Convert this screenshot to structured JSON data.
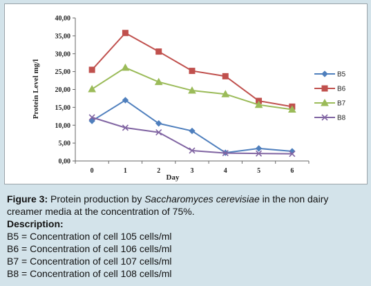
{
  "chart_data": {
    "type": "line",
    "title": "",
    "xlabel": "Day",
    "ylabel": "Protein Level mg/l",
    "categories": [
      "0",
      "1",
      "2",
      "3",
      "4",
      "5",
      "6"
    ],
    "y_ticks": [
      "0,00",
      "5,00",
      "10,00",
      "15,00",
      "20,00",
      "25,00",
      "30,00",
      "35,00",
      "40,00"
    ],
    "ylim": [
      0,
      40
    ],
    "legend_position": "right",
    "series": [
      {
        "name": "B5",
        "color": "#4f7fbd",
        "marker": "diamond",
        "values": [
          11.2,
          17.0,
          10.5,
          8.4,
          2.3,
          3.5,
          2.7
        ]
      },
      {
        "name": "B6",
        "color": "#c0504d",
        "marker": "square",
        "values": [
          25.5,
          35.8,
          30.6,
          25.2,
          23.7,
          16.8,
          15.2
        ]
      },
      {
        "name": "B7",
        "color": "#9bbb59",
        "marker": "triangle",
        "values": [
          20.1,
          26.1,
          22.1,
          19.7,
          18.7,
          15.7,
          14.4
        ]
      },
      {
        "name": "B8",
        "color": "#8064a2",
        "marker": "x",
        "values": [
          12.2,
          9.3,
          8.0,
          2.9,
          2.2,
          2.1,
          2.0
        ]
      }
    ]
  },
  "caption": {
    "figure_label": "Figure 3:",
    "text_before": " Protein production by ",
    "species": "Saccharomyces cerevisiae",
    "text_after": " in the non dairy creamer media at the concentration of 75%.",
    "description_title": "Description:",
    "lines": [
      "B5 = Concentration of cell 105 cells/ml",
      "B6 = Concentration of cell 106 cells/ml",
      "B7 = Concentration of cell 107 cells/ml",
      "B8 = Concentration of cell 108 cells/ml"
    ]
  }
}
